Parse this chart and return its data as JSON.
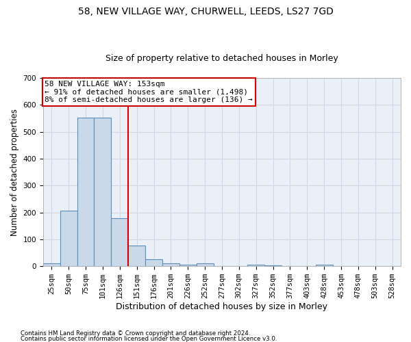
{
  "title_line1": "58, NEW VILLAGE WAY, CHURWELL, LEEDS, LS27 7GD",
  "title_line2": "Size of property relative to detached houses in Morley",
  "xlabel": "Distribution of detached houses by size in Morley",
  "ylabel": "Number of detached properties",
  "footer_line1": "Contains HM Land Registry data © Crown copyright and database right 2024.",
  "footer_line2": "Contains public sector information licensed under the Open Government Licence v3.0.",
  "bin_labels": [
    "25sqm",
    "50sqm",
    "75sqm",
    "101sqm",
    "126sqm",
    "151sqm",
    "176sqm",
    "201sqm",
    "226sqm",
    "252sqm",
    "277sqm",
    "302sqm",
    "327sqm",
    "352sqm",
    "377sqm",
    "403sqm",
    "428sqm",
    "453sqm",
    "478sqm",
    "503sqm",
    "528sqm"
  ],
  "bar_values": [
    10,
    207,
    553,
    553,
    178,
    78,
    27,
    10,
    6,
    10,
    0,
    0,
    5,
    3,
    0,
    0,
    5,
    0,
    0,
    0,
    0
  ],
  "bar_color": "#c9d9e8",
  "bar_edgecolor": "#5b8db8",
  "bar_linewidth": 0.8,
  "vline_x": 4.5,
  "vline_color": "#cc0000",
  "annotation_text": "58 NEW VILLAGE WAY: 153sqm\n← 91% of detached houses are smaller (1,498)\n8% of semi-detached houses are larger (136) →",
  "annotation_box_edgecolor": "#cc0000",
  "annotation_box_facecolor": "white",
  "ylim": [
    0,
    700
  ],
  "yticks": [
    0,
    100,
    200,
    300,
    400,
    500,
    600,
    700
  ],
  "grid_color": "#d0d8e8",
  "bg_color": "#eaf0f8",
  "title_fontsize": 10,
  "subtitle_fontsize": 9,
  "xlabel_fontsize": 9,
  "ylabel_fontsize": 8.5,
  "tick_fontsize": 7.5,
  "annotation_fontsize": 8
}
